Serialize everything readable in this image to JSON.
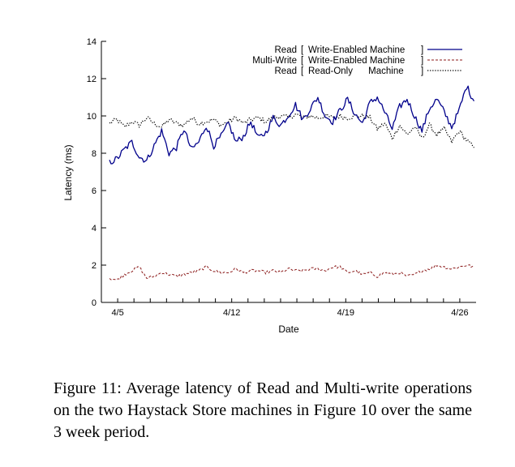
{
  "figure_caption": "Figure 11: Average latency of Read and Multi-write operations on the two Haystack Store machines in Figure 10 over the same 3 week period.",
  "chart_data": {
    "type": "line",
    "title": "",
    "xlabel": "Date",
    "ylabel": "Latency (ms)",
    "ylim": [
      0,
      14
    ],
    "yticks": [
      0,
      2,
      4,
      6,
      8,
      10,
      12,
      14
    ],
    "xlim": [
      "2024-04-04",
      "2024-04-27"
    ],
    "xtick_labels": [
      "4/5",
      "4/12",
      "4/19",
      "4/26"
    ],
    "grid": false,
    "legend": "top-right",
    "legend_entries": [
      {
        "op": "Read",
        "bracket_open": "[",
        "machine": "Write-Enabled Machine",
        "bracket_close": "]"
      },
      {
        "op": "Multi-Write",
        "bracket_open": "[",
        "machine": "Write-Enabled Machine",
        "bracket_close": "]"
      },
      {
        "op": "Read",
        "bracket_open": "[",
        "machine": "Read-Only      Machine",
        "bracket_close": "]"
      }
    ],
    "series": [
      {
        "color": "#00008b",
        "dash": "solid",
        "values": [
          7.5,
          7.7,
          8.2,
          8.6,
          7.8,
          7.6,
          8.4,
          9.2,
          8.0,
          8.3,
          9.3,
          8.2,
          8.6,
          9.5,
          8.4,
          8.9,
          9.6,
          8.6,
          8.9,
          9.7,
          8.8,
          9.1,
          9.9,
          9.5,
          10.0,
          10.6,
          9.8,
          10.4,
          11.0,
          10.0,
          9.7,
          10.3,
          10.9,
          10.1,
          9.6,
          10.7,
          11.0,
          10.2,
          9.3,
          10.5,
          10.9,
          10.0,
          9.2,
          10.4,
          10.9,
          10.2,
          9.4,
          10.3,
          11.6,
          10.8
        ]
      },
      {
        "color": "#8b1a1a",
        "dash": "dashed",
        "values": [
          1.3,
          1.2,
          1.5,
          1.7,
          1.9,
          1.3,
          1.4,
          1.6,
          1.5,
          1.4,
          1.5,
          1.6,
          1.7,
          1.9,
          1.7,
          1.6,
          1.6,
          1.8,
          1.6,
          1.7,
          1.7,
          1.6,
          1.7,
          1.6,
          1.8,
          1.7,
          1.7,
          1.8,
          1.8,
          1.7,
          1.9,
          1.9,
          1.6,
          1.7,
          1.5,
          1.6,
          1.4,
          1.6,
          1.5,
          1.6,
          1.4,
          1.5,
          1.7,
          1.8,
          2.0,
          1.9,
          1.8,
          1.9,
          2.0,
          1.9
        ]
      },
      {
        "color": "#000000",
        "dash": "dotted",
        "values": [
          9.6,
          9.8,
          9.4,
          9.7,
          9.5,
          9.9,
          9.6,
          9.4,
          9.8,
          9.6,
          9.5,
          9.9,
          9.6,
          9.7,
          9.8,
          9.5,
          9.7,
          9.9,
          9.6,
          9.8,
          9.9,
          9.7,
          9.9,
          10.0,
          9.9,
          10.1,
          9.9,
          10.0,
          9.9,
          10.0,
          9.9,
          10.0,
          9.9,
          10.0,
          10.0,
          9.9,
          9.3,
          9.6,
          8.8,
          9.5,
          9.0,
          9.4,
          8.8,
          9.5,
          9.0,
          9.3,
          8.6,
          9.2,
          8.7,
          8.3
        ]
      }
    ]
  }
}
